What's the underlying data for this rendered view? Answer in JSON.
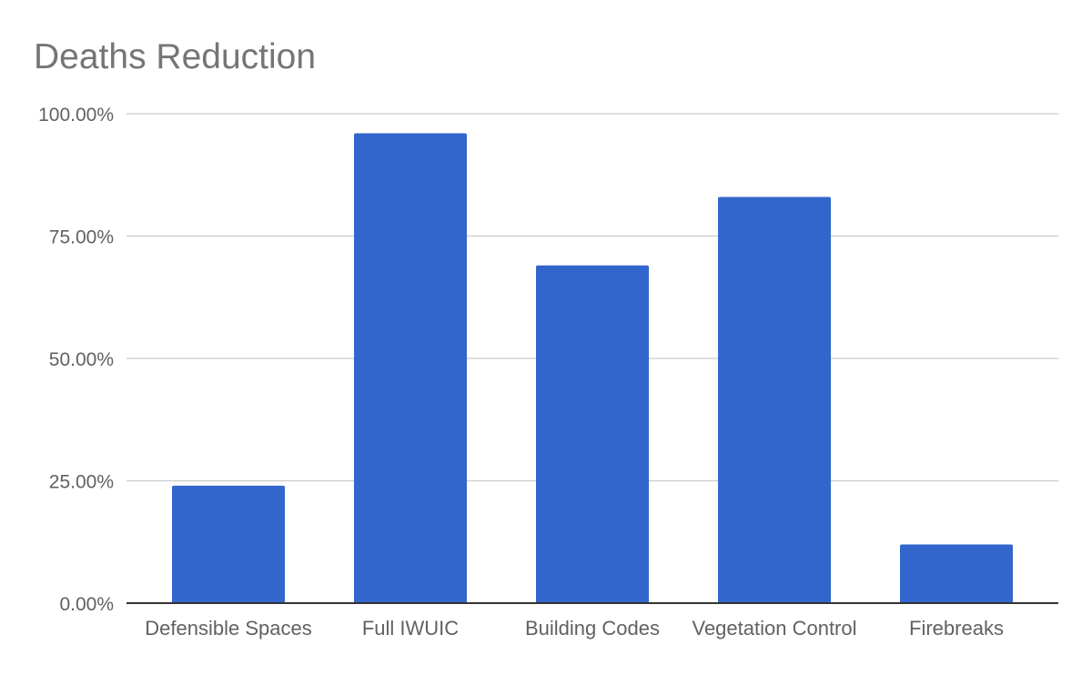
{
  "chart_data": {
    "type": "bar",
    "title": "Deaths Reduction",
    "xlabel": "",
    "ylabel": "",
    "categories": [
      "Defensible Spaces",
      "Full IWUIC",
      "Building Codes",
      "Vegetation Control",
      "Firebreaks"
    ],
    "series": [
      {
        "values": [
          0.24,
          0.96,
          0.69,
          0.83,
          0.12
        ]
      }
    ],
    "ylim": [
      0,
      1
    ],
    "yticks": [
      0,
      0.25,
      0.5,
      0.75,
      1.0
    ],
    "ytick_labels": [
      "0.00%",
      "25.00%",
      "50.00%",
      "75.00%",
      "100.00%"
    ],
    "grid": true,
    "legend": "none",
    "colors": {
      "bar": "#3366cc",
      "grid": "#cccccc",
      "axis": "#333333",
      "title": "#757575",
      "label": "#616161"
    }
  }
}
